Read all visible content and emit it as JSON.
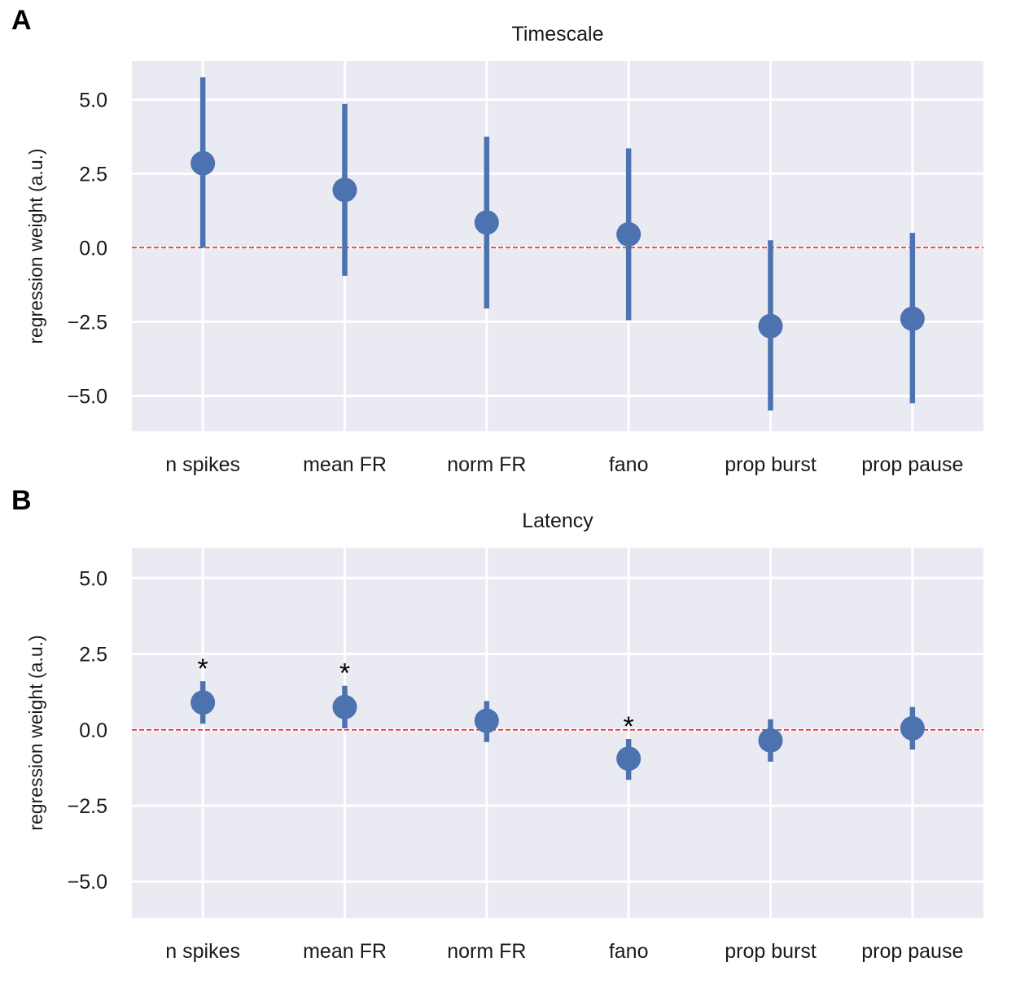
{
  "panels": [
    {
      "letter": "A"
    },
    {
      "letter": "B"
    }
  ],
  "colors": {
    "background": "#eaeaf2",
    "grid": "#ffffff",
    "series": "#4c72b0",
    "reference_line": "#e8252a"
  },
  "chart_data": [
    {
      "type": "scatter",
      "title": "Timescale",
      "xlabel": "",
      "ylabel": "regression weight (a.u.)",
      "categories": [
        "n spikes",
        "mean FR",
        "norm FR",
        "fano",
        "prop burst",
        "prop pause"
      ],
      "values": [
        2.85,
        1.95,
        0.85,
        0.45,
        -2.65,
        -2.4
      ],
      "error_low": [
        0.0,
        -0.95,
        -2.05,
        -2.45,
        -5.5,
        -5.25
      ],
      "error_high": [
        5.75,
        4.85,
        3.75,
        3.35,
        0.25,
        0.5
      ],
      "significant": [
        false,
        false,
        false,
        false,
        false,
        false
      ],
      "ylim": [
        -6.2,
        6.3
      ],
      "yticks": [
        -5.0,
        -2.5,
        0.0,
        2.5,
        5.0
      ],
      "ytick_labels": [
        "−5.0",
        "−2.5",
        "0.0",
        "2.5",
        "5.0"
      ],
      "reference_y": 0,
      "grid": true
    },
    {
      "type": "scatter",
      "title": "Latency",
      "xlabel": "",
      "ylabel": "regression weight (a.u.)",
      "categories": [
        "n spikes",
        "mean FR",
        "norm FR",
        "fano",
        "prop burst",
        "prop pause"
      ],
      "values": [
        0.9,
        0.75,
        0.3,
        -0.95,
        -0.35,
        0.05
      ],
      "error_low": [
        0.2,
        0.05,
        -0.4,
        -1.65,
        -1.05,
        -0.65
      ],
      "error_high": [
        1.6,
        1.45,
        0.95,
        -0.3,
        0.35,
        0.75
      ],
      "significant": [
        true,
        true,
        false,
        true,
        false,
        false
      ],
      "significance_marker": "*",
      "ylim": [
        -6.2,
        6.0
      ],
      "yticks": [
        -5.0,
        -2.5,
        0.0,
        2.5,
        5.0
      ],
      "ytick_labels": [
        "−5.0",
        "−2.5",
        "0.0",
        "2.5",
        "5.0"
      ],
      "reference_y": 0,
      "grid": true
    }
  ]
}
